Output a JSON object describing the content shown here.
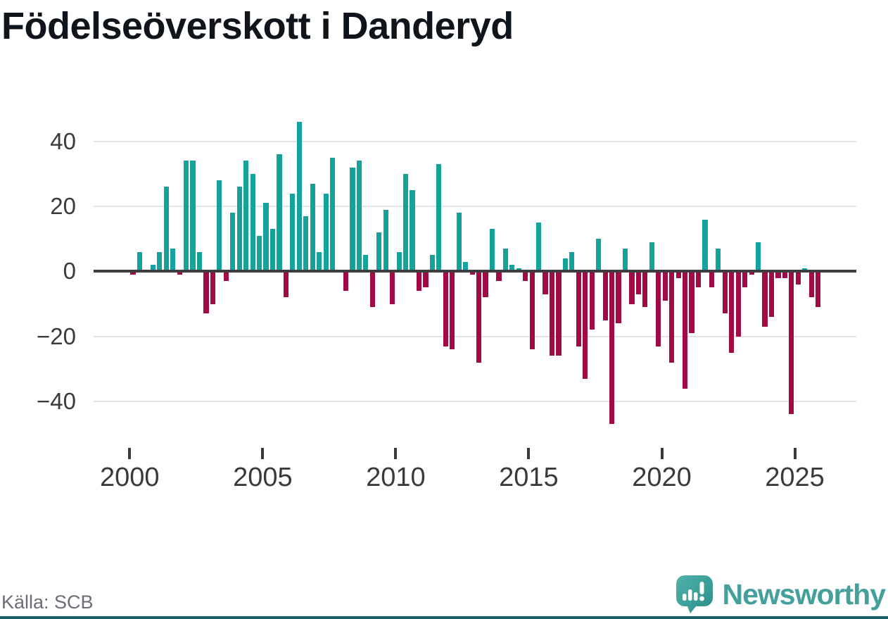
{
  "page": {
    "title": "Födelseöverskott i Danderyd",
    "source": "Källa: SCB",
    "brand": "Newsworthy"
  },
  "colors": {
    "positive": "#14a29b",
    "negative": "#a00b46",
    "axis": "#3d3d3d",
    "grid": "#e3e3e3",
    "tick_label": "#3a3a3a",
    "title": "#10151b",
    "source_text": "#6d6d76",
    "logo_teal": "#43a09a",
    "bottom_strip": "#1d5f66"
  },
  "chart_data": {
    "type": "bar",
    "title": "Födelseöverskott i Danderyd",
    "source": "Källa: SCB",
    "period": "quarterly",
    "x_start": "2000-Q1",
    "x_end": "2025-Q4",
    "xlabel": "",
    "ylabel": "",
    "ylim": [
      -50,
      52
    ],
    "grid": "horizontal",
    "legend": "none",
    "y_ticks": [
      40,
      20,
      0,
      -20,
      -40
    ],
    "y_tick_labels": [
      "40",
      "20",
      "0",
      "−20",
      "−40"
    ],
    "x_tick_years": [
      2000,
      2005,
      2010,
      2015,
      2020,
      2025
    ],
    "x_tick_labels": [
      "2000",
      "2005",
      "2010",
      "2015",
      "2020",
      "2025"
    ],
    "series": [
      {
        "year": 2000,
        "values": [
          -1,
          6,
          0,
          2
        ]
      },
      {
        "year": 2001,
        "values": [
          6,
          26,
          7,
          -1
        ]
      },
      {
        "year": 2002,
        "values": [
          34,
          34,
          6,
          -13
        ]
      },
      {
        "year": 2003,
        "values": [
          -10,
          28,
          -3,
          18
        ]
      },
      {
        "year": 2004,
        "values": [
          26,
          34,
          30,
          11
        ]
      },
      {
        "year": 2005,
        "values": [
          21,
          13,
          36,
          -8
        ]
      },
      {
        "year": 2006,
        "values": [
          24,
          46,
          17,
          27
        ]
      },
      {
        "year": 2007,
        "values": [
          6,
          24,
          35,
          0
        ]
      },
      {
        "year": 2008,
        "values": [
          -6,
          32,
          34,
          5
        ]
      },
      {
        "year": 2009,
        "values": [
          -11,
          12,
          19,
          -10
        ]
      },
      {
        "year": 2010,
        "values": [
          6,
          30,
          25,
          -6
        ]
      },
      {
        "year": 2011,
        "values": [
          -5,
          5,
          33,
          -23
        ]
      },
      {
        "year": 2012,
        "values": [
          -24,
          18,
          3,
          -1
        ]
      },
      {
        "year": 2013,
        "values": [
          -28,
          -8,
          13,
          -3
        ]
      },
      {
        "year": 2014,
        "values": [
          7,
          2,
          1,
          -3
        ]
      },
      {
        "year": 2015,
        "values": [
          -24,
          15,
          -7,
          -26
        ]
      },
      {
        "year": 2016,
        "values": [
          -26,
          4,
          6,
          -23
        ]
      },
      {
        "year": 2017,
        "values": [
          -33,
          -18,
          10,
          -15
        ]
      },
      {
        "year": 2018,
        "values": [
          -47,
          -16,
          7,
          -10
        ]
      },
      {
        "year": 2019,
        "values": [
          -7,
          -11,
          9,
          -23
        ]
      },
      {
        "year": 2020,
        "values": [
          -9,
          -28,
          -2,
          -36
        ]
      },
      {
        "year": 2021,
        "values": [
          -19,
          -5,
          16,
          -5
        ]
      },
      {
        "year": 2022,
        "values": [
          7,
          -13,
          -25,
          -20
        ]
      },
      {
        "year": 2023,
        "values": [
          -5,
          -1,
          9,
          -17
        ]
      },
      {
        "year": 2024,
        "values": [
          -14,
          -2,
          -2,
          -44
        ]
      },
      {
        "year": 2025,
        "values": [
          -4,
          1,
          -8,
          -11
        ]
      }
    ]
  }
}
